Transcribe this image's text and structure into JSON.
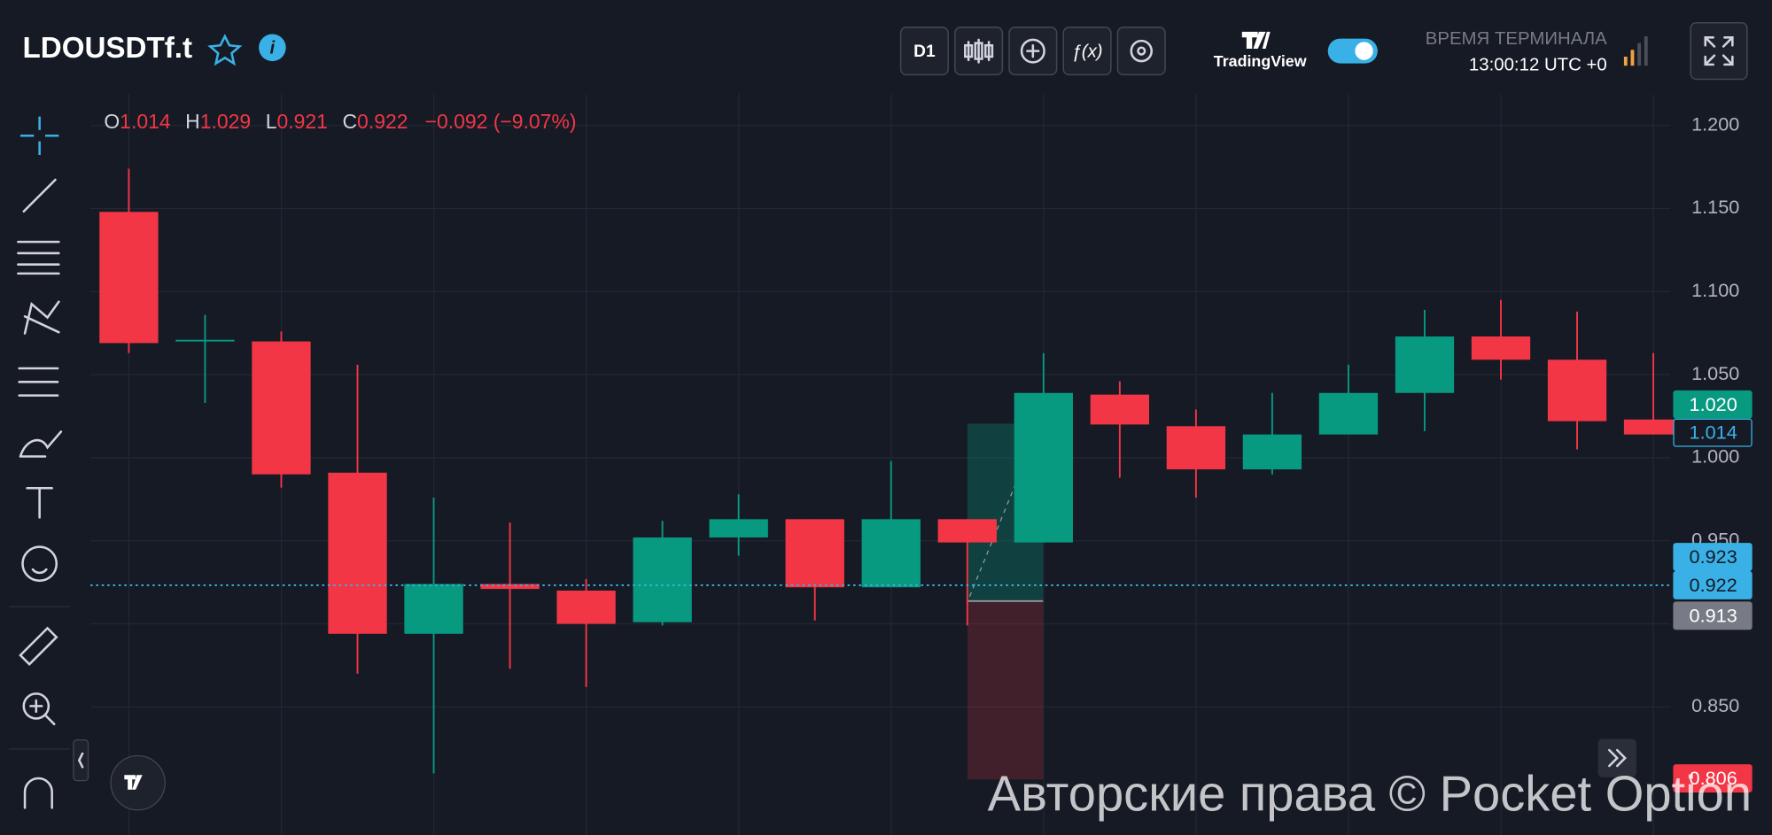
{
  "header": {
    "symbol": "LDOUSDTf.t",
    "timeframe": "D1",
    "brand": "TradingView",
    "terminal_label": "ВРЕМЯ ТЕРМИНАЛА",
    "terminal_time": "13:00:12 UTC +0"
  },
  "legend": {
    "o_label": "O",
    "open": "1.014",
    "h_label": "H",
    "high": "1.029",
    "l_label": "L",
    "low": "0.921",
    "c_label": "C",
    "close": "0.922",
    "change": "−0.092 (−9.07%)"
  },
  "chart_data": {
    "type": "candlestick",
    "open": [
      1.148,
      1.071,
      1.07,
      0.991,
      0.894,
      0.924,
      0.92,
      0.901,
      0.952,
      0.963,
      0.922,
      0.963,
      0.949,
      1.038,
      1.019,
      0.993,
      1.014,
      1.039,
      1.073,
      1.059,
      1.023
    ],
    "high": [
      1.174,
      1.086,
      1.076,
      1.056,
      0.976,
      0.961,
      0.927,
      0.962,
      0.978,
      0.963,
      0.998,
      0.963,
      1.063,
      1.046,
      1.029,
      1.039,
      1.056,
      1.089,
      1.095,
      1.088,
      1.063
    ],
    "low": [
      1.063,
      1.033,
      0.982,
      0.87,
      0.81,
      0.873,
      0.862,
      0.899,
      0.941,
      0.902,
      0.922,
      0.899,
      0.949,
      0.988,
      0.976,
      0.99,
      1.014,
      1.016,
      1.047,
      1.005,
      1.014
    ],
    "close": [
      1.069,
      1.071,
      0.99,
      0.894,
      0.924,
      0.921,
      0.9,
      0.952,
      0.963,
      0.922,
      0.963,
      0.949,
      1.039,
      1.02,
      0.993,
      1.014,
      1.039,
      1.073,
      1.059,
      1.022,
      1.014
    ],
    "up_color": "#089981",
    "down_color": "#f23645",
    "ylim": [
      0.773,
      1.219
    ],
    "yticks": [
      {
        "value": 1.2,
        "label": "1.200"
      },
      {
        "value": 1.15,
        "label": "1.150"
      },
      {
        "value": 1.1,
        "label": "1.100"
      },
      {
        "value": 1.05,
        "label": "1.050"
      },
      {
        "value": 1.0,
        "label": "1.000"
      },
      {
        "value": 0.95,
        "label": "0.950"
      },
      {
        "value": 0.9,
        "label": "0.900"
      },
      {
        "value": 0.85,
        "label": "0.850"
      }
    ],
    "grid": true
  },
  "price_labels": [
    "1.020",
    "1.014",
    "0.923",
    "0.922",
    "0.913",
    "0.806"
  ],
  "watermark": "Авторские права © Pocket Option"
}
